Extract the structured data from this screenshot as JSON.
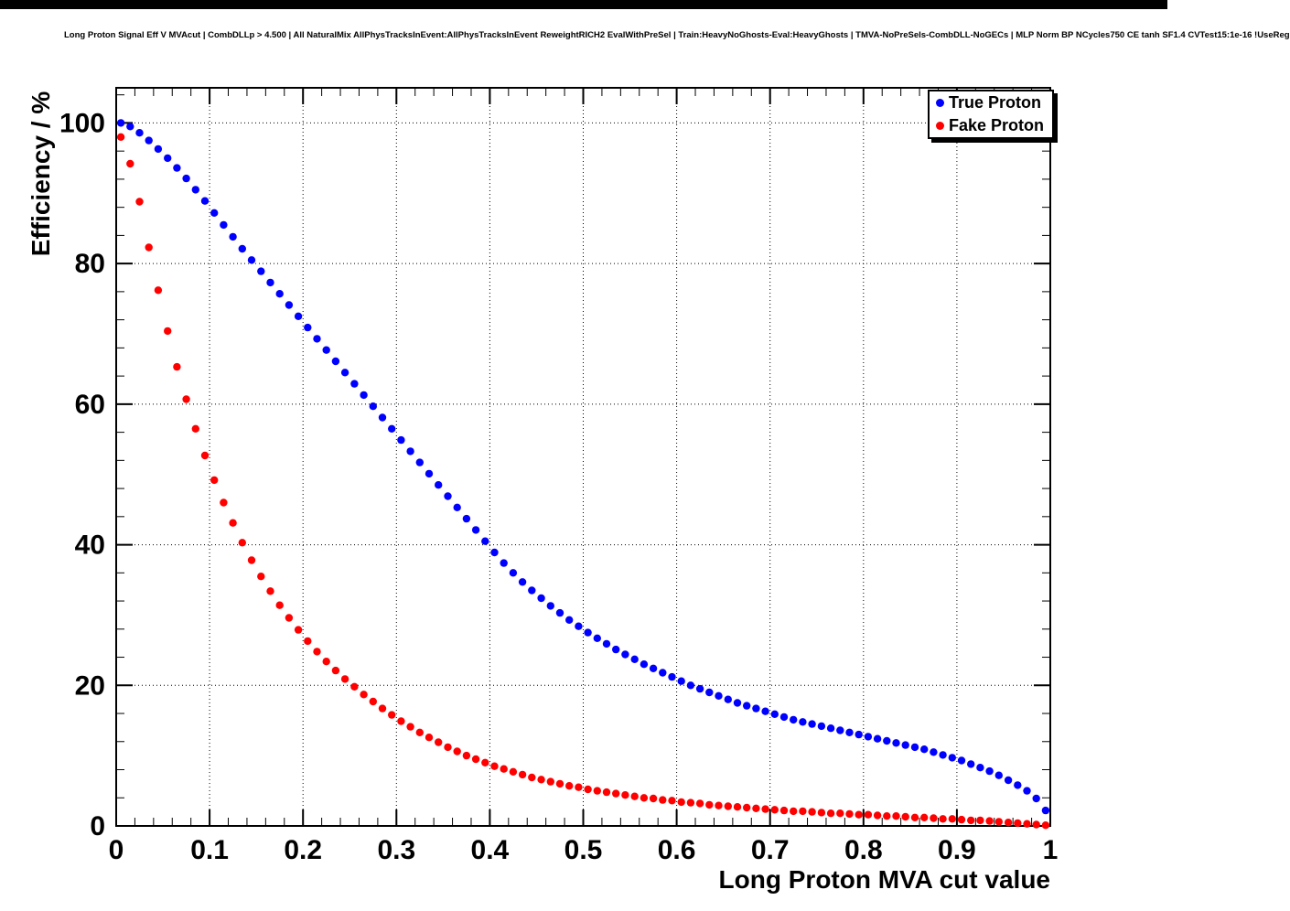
{
  "chart_data": {
    "type": "scatter",
    "title": "Long Proton Signal Eff V MVAcut | CombDLLp > 4.500 | All NaturalMix AllPhysTracksInEvent:AllPhysTracksInEvent ReweightRICH2 EvalWithPreSel | Train:HeavyNoGhosts-Eval:HeavyGhosts | TMVA-NoPreSels-CombDLL-NoGECs | MLP Norm BP NCycles750 CE tanh SF1.4 CVTest15:1e-16 !UseReg",
    "xlabel": "Long Proton MVA cut value",
    "ylabel": "Efficiency / %",
    "xlim": [
      0,
      1
    ],
    "ylim": [
      0,
      105
    ],
    "grid": true,
    "legend_position": "top-right",
    "x_ticks": [
      0,
      0.1,
      0.2,
      0.3,
      0.4,
      0.5,
      0.6,
      0.7,
      0.8,
      0.9,
      1
    ],
    "x_tick_labels": [
      "0",
      "0.1",
      "0.2",
      "0.3",
      "0.4",
      "0.5",
      "0.6",
      "0.7",
      "0.8",
      "0.9",
      "1"
    ],
    "y_ticks": [
      0,
      20,
      40,
      60,
      80,
      100
    ],
    "y_tick_labels": [
      "0",
      "20",
      "40",
      "60",
      "80",
      "100"
    ],
    "x_minor_step": 0.02,
    "y_minor_step": 4,
    "x": [
      0.005,
      0.015,
      0.025,
      0.035,
      0.045,
      0.055,
      0.065,
      0.075,
      0.085,
      0.095,
      0.105,
      0.115,
      0.125,
      0.135,
      0.145,
      0.155,
      0.165,
      0.175,
      0.185,
      0.195,
      0.205,
      0.215,
      0.225,
      0.235,
      0.245,
      0.255,
      0.265,
      0.275,
      0.285,
      0.295,
      0.305,
      0.315,
      0.325,
      0.335,
      0.345,
      0.355,
      0.365,
      0.375,
      0.385,
      0.395,
      0.405,
      0.415,
      0.425,
      0.435,
      0.445,
      0.455,
      0.465,
      0.475,
      0.485,
      0.495,
      0.505,
      0.515,
      0.525,
      0.535,
      0.545,
      0.555,
      0.565,
      0.575,
      0.585,
      0.595,
      0.605,
      0.615,
      0.625,
      0.635,
      0.645,
      0.655,
      0.665,
      0.675,
      0.685,
      0.695,
      0.705,
      0.715,
      0.725,
      0.735,
      0.745,
      0.755,
      0.765,
      0.775,
      0.785,
      0.795,
      0.805,
      0.815,
      0.825,
      0.835,
      0.845,
      0.855,
      0.865,
      0.875,
      0.885,
      0.895,
      0.905,
      0.915,
      0.925,
      0.935,
      0.945,
      0.955,
      0.965,
      0.975,
      0.985,
      0.995
    ],
    "series": [
      {
        "name": "True Proton",
        "color": "#0000ff",
        "y": [
          100,
          99.5,
          98.6,
          97.5,
          96.3,
          95.0,
          93.6,
          92.1,
          90.5,
          88.9,
          87.2,
          85.5,
          83.8,
          82.1,
          80.5,
          78.9,
          77.3,
          75.7,
          74.1,
          72.5,
          70.9,
          69.3,
          67.7,
          66.1,
          64.5,
          62.9,
          61.3,
          59.7,
          58.1,
          56.5,
          54.9,
          53.3,
          51.7,
          50.1,
          48.5,
          46.9,
          45.3,
          43.7,
          42.1,
          40.5,
          38.9,
          37.4,
          36.0,
          34.7,
          33.5,
          32.4,
          31.3,
          30.3,
          29.3,
          28.4,
          27.5,
          26.7,
          25.9,
          25.1,
          24.4,
          23.7,
          23.0,
          22.4,
          21.8,
          21.2,
          20.6,
          20.0,
          19.5,
          19.0,
          18.5,
          18.0,
          17.5,
          17.1,
          16.7,
          16.3,
          15.9,
          15.5,
          15.1,
          14.8,
          14.5,
          14.2,
          13.9,
          13.6,
          13.3,
          13.0,
          12.7,
          12.4,
          12.1,
          11.8,
          11.5,
          11.2,
          10.9,
          10.5,
          10.1,
          9.7,
          9.3,
          8.8,
          8.3,
          7.8,
          7.2,
          6.5,
          5.8,
          5.0,
          3.9,
          2.2
        ]
      },
      {
        "name": "Fake Proton",
        "color": "#ff0000",
        "y": [
          98.0,
          94.2,
          88.8,
          82.3,
          76.2,
          70.4,
          65.3,
          60.7,
          56.5,
          52.7,
          49.2,
          46.0,
          43.1,
          40.3,
          37.8,
          35.5,
          33.4,
          31.4,
          29.6,
          27.9,
          26.3,
          24.8,
          23.4,
          22.1,
          20.9,
          19.8,
          18.7,
          17.7,
          16.7,
          15.8,
          14.9,
          14.1,
          13.3,
          12.6,
          11.9,
          11.2,
          10.6,
          10.0,
          9.5,
          9.0,
          8.5,
          8.1,
          7.7,
          7.3,
          6.9,
          6.6,
          6.3,
          6.0,
          5.7,
          5.5,
          5.2,
          5.0,
          4.8,
          4.6,
          4.4,
          4.2,
          4.0,
          3.9,
          3.7,
          3.6,
          3.4,
          3.3,
          3.2,
          3.0,
          2.9,
          2.8,
          2.7,
          2.6,
          2.5,
          2.4,
          2.3,
          2.2,
          2.1,
          2.1,
          2.0,
          1.9,
          1.8,
          1.8,
          1.7,
          1.6,
          1.6,
          1.5,
          1.4,
          1.4,
          1.3,
          1.2,
          1.2,
          1.1,
          1.0,
          1.0,
          0.9,
          0.8,
          0.8,
          0.7,
          0.6,
          0.5,
          0.4,
          0.3,
          0.2,
          0.1
        ]
      }
    ]
  }
}
